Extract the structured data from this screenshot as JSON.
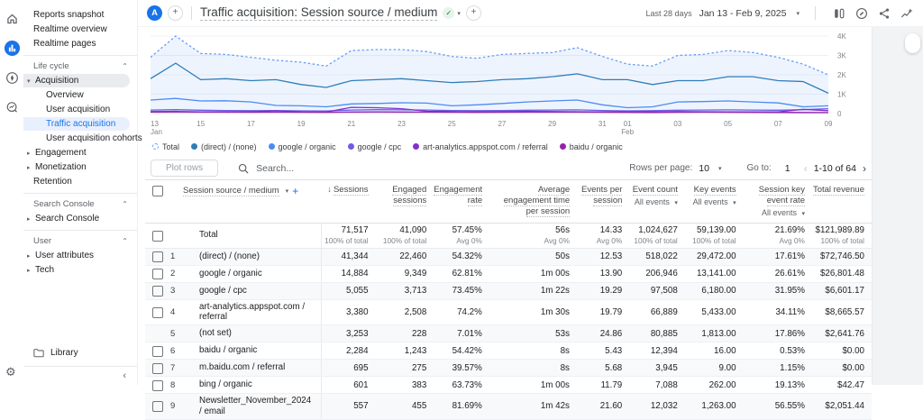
{
  "icons": {
    "plus": "+",
    "caret_down": "▾",
    "check": "✓",
    "collapse": "⌃",
    "chevron_left": "‹",
    "chevron_right": "›",
    "sort_desc": "↓",
    "gear": "⚙",
    "arrow_right": "▸",
    "arrow_down": "▾",
    "nav_collapse": "‹"
  },
  "header": {
    "avatar": "A",
    "title": "Traffic acquisition: Session source / medium",
    "date_label": "Last 28 days",
    "date_range": "Jan 13 - Feb 9, 2025",
    "icons": [
      "comparisons",
      "customize-report",
      "share",
      "insights"
    ]
  },
  "sidebar": {
    "top_items": [
      "Reports snapshot",
      "Realtime overview",
      "Realtime pages"
    ],
    "sections": [
      {
        "label": "Life cycle",
        "items": [
          {
            "label": "Acquisition",
            "arrow": "down",
            "expanded": true
          },
          {
            "label": "Overview",
            "sub": true
          },
          {
            "label": "User acquisition",
            "sub": true
          },
          {
            "label": "Traffic acquisition",
            "sub": true,
            "selected": true
          },
          {
            "label": "User acquisition cohorts",
            "sub": true
          },
          {
            "label": "Engagement",
            "arrow": "right"
          },
          {
            "label": "Monetization",
            "arrow": "right"
          },
          {
            "label": "Retention"
          }
        ]
      },
      {
        "label": "Search Console",
        "items": [
          {
            "label": "Search Console",
            "arrow": "right"
          }
        ]
      },
      {
        "label": "User",
        "items": [
          {
            "label": "User attributes",
            "arrow": "right"
          },
          {
            "label": "Tech",
            "arrow": "right"
          }
        ]
      }
    ],
    "library": "Library"
  },
  "chart_data": {
    "type": "line",
    "title": "Sessions by session source / medium over time",
    "ylim": [
      0,
      4000
    ],
    "y_ticks": [
      {
        "v": 0,
        "label": "0"
      },
      {
        "v": 1000,
        "label": "1K"
      },
      {
        "v": 2000,
        "label": "2K"
      },
      {
        "v": 3000,
        "label": "3K"
      },
      {
        "v": 4000,
        "label": "4K"
      }
    ],
    "x": [
      "13",
      "14",
      "15",
      "16",
      "17",
      "18",
      "19",
      "20",
      "21",
      "22",
      "23",
      "24",
      "25",
      "26",
      "27",
      "28",
      "29",
      "30",
      "31",
      "01",
      "02",
      "03",
      "04",
      "05",
      "06",
      "07",
      "08",
      "09"
    ],
    "x_ticks": [
      {
        "i": 0,
        "label": "13",
        "sub": "Jan"
      },
      {
        "i": 2,
        "label": "15"
      },
      {
        "i": 4,
        "label": "17"
      },
      {
        "i": 6,
        "label": "19"
      },
      {
        "i": 8,
        "label": "21"
      },
      {
        "i": 10,
        "label": "23"
      },
      {
        "i": 12,
        "label": "25"
      },
      {
        "i": 14,
        "label": "27"
      },
      {
        "i": 16,
        "label": "29"
      },
      {
        "i": 18,
        "label": "31"
      },
      {
        "i": 19,
        "label": "01",
        "sub": "Feb"
      },
      {
        "i": 21,
        "label": "03"
      },
      {
        "i": 23,
        "label": "05"
      },
      {
        "i": 25,
        "label": "07"
      },
      {
        "i": 27,
        "label": "09"
      }
    ],
    "series": [
      {
        "name": "Total",
        "color": "#669df6",
        "dash": true,
        "area": true,
        "values": [
          2900,
          4000,
          3100,
          3050,
          2900,
          2750,
          2650,
          2450,
          3250,
          3300,
          3300,
          3200,
          2950,
          2850,
          3050,
          3100,
          3150,
          3400,
          2950,
          2550,
          2450,
          3000,
          3050,
          3250,
          3150,
          2900,
          2550,
          2000
        ]
      },
      {
        "name": "(direct) / (none)",
        "color": "#2f7db8",
        "values": [
          1800,
          2600,
          1750,
          1800,
          1700,
          1750,
          1500,
          1350,
          1700,
          1750,
          1800,
          1700,
          1600,
          1650,
          1750,
          1800,
          1900,
          2050,
          1750,
          1750,
          1500,
          1700,
          1700,
          1900,
          1900,
          1700,
          1650,
          1050
        ]
      },
      {
        "name": "google / organic",
        "color": "#4c8bf5",
        "values": [
          700,
          780,
          650,
          660,
          600,
          420,
          400,
          350,
          500,
          520,
          560,
          540,
          400,
          450,
          520,
          600,
          650,
          700,
          450,
          300,
          350,
          600,
          620,
          650,
          600,
          550,
          350,
          400
        ]
      },
      {
        "name": "google / cpc",
        "color": "#6c5ce7",
        "values": [
          180,
          200,
          170,
          160,
          150,
          160,
          140,
          130,
          180,
          200,
          190,
          180,
          160,
          150,
          160,
          170,
          180,
          190,
          160,
          140,
          150,
          170,
          180,
          190,
          180,
          170,
          200,
          250
        ]
      },
      {
        "name": "art-analytics.appspot.com / referral",
        "color": "#8430ce",
        "values": [
          100,
          110,
          90,
          95,
          90,
          140,
          90,
          80,
          320,
          300,
          250,
          120,
          100,
          90,
          100,
          110,
          100,
          95,
          90,
          85,
          90,
          100,
          95,
          90,
          85,
          90,
          220,
          150
        ]
      },
      {
        "name": "baidu / organic",
        "color": "#9125a9",
        "values": [
          80,
          85,
          80,
          75,
          70,
          75,
          70,
          65,
          80,
          85,
          80,
          75,
          70,
          65,
          70,
          75,
          80,
          75,
          70,
          65,
          60,
          70,
          75,
          70,
          65,
          60,
          55,
          50
        ]
      }
    ]
  },
  "toolbar": {
    "plot_rows": "Plot rows",
    "search_placeholder": "Search...",
    "rows_per_page_label": "Rows per page:",
    "rows_per_page_value": "10",
    "goto_label": "Go to:",
    "goto_value": "1",
    "pagination": "1-10 of 64"
  },
  "table": {
    "dimension_header": "Session source / medium",
    "columns": [
      {
        "label": "Sessions",
        "sort": true
      },
      {
        "label": "Engaged sessions"
      },
      {
        "label": "Engagement rate"
      },
      {
        "label": "Average engagement time per session"
      },
      {
        "label": "Events per session"
      },
      {
        "label": "Event count",
        "filter": "All events"
      },
      {
        "label": "Key events",
        "filter": "All events"
      },
      {
        "label": "Session key event rate",
        "filter": "All events"
      },
      {
        "label": "Total revenue"
      }
    ],
    "totals": {
      "label": "Total",
      "values": [
        {
          "v": "71,517",
          "c": "100% of total"
        },
        {
          "v": "41,090",
          "c": "100% of total"
        },
        {
          "v": "57.45%",
          "c": "Avg 0%"
        },
        {
          "v": "56s",
          "c": "Avg 0%"
        },
        {
          "v": "14.33",
          "c": "Avg 0%"
        },
        {
          "v": "1,024,627",
          "c": "100% of total"
        },
        {
          "v": "59,139.00",
          "c": "100% of total"
        },
        {
          "v": "21.69%",
          "c": "Avg 0%"
        },
        {
          "v": "$121,989.89",
          "c": "100% of total"
        }
      ]
    },
    "rows": [
      {
        "n": "1",
        "source": "(direct) / (none)",
        "checkbox": true,
        "cells": [
          "41,344",
          "22,460",
          "54.32%",
          "50s",
          "12.53",
          "518,022",
          "29,472.00",
          "17.61%",
          "$72,746.50"
        ]
      },
      {
        "n": "2",
        "source": "google / organic",
        "checkbox": true,
        "cells": [
          "14,884",
          "9,349",
          "62.81%",
          "1m 00s",
          "13.90",
          "206,946",
          "13,141.00",
          "26.61%",
          "$26,801.48"
        ]
      },
      {
        "n": "3",
        "source": "google / cpc",
        "checkbox": true,
        "cells": [
          "5,055",
          "3,713",
          "73.45%",
          "1m 22s",
          "19.29",
          "97,508",
          "6,180.00",
          "31.95%",
          "$6,601.17"
        ]
      },
      {
        "n": "4",
        "source": "art-analytics.appspot.com / referral",
        "checkbox": true,
        "cells": [
          "3,380",
          "2,508",
          "74.2%",
          "1m 30s",
          "19.79",
          "66,889",
          "5,433.00",
          "34.11%",
          "$8,665.57"
        ]
      },
      {
        "n": "5",
        "source": "(not set)",
        "checkbox": false,
        "cells": [
          "3,253",
          "228",
          "7.01%",
          "53s",
          "24.86",
          "80,885",
          "1,813.00",
          "17.86%",
          "$2,641.76"
        ]
      },
      {
        "n": "6",
        "source": "baidu / organic",
        "checkbox": true,
        "cells": [
          "2,284",
          "1,243",
          "54.42%",
          "8s",
          "5.43",
          "12,394",
          "16.00",
          "0.53%",
          "$0.00"
        ]
      },
      {
        "n": "7",
        "source": "m.baidu.com / referral",
        "checkbox": true,
        "cells": [
          "695",
          "275",
          "39.57%",
          "8s",
          "5.68",
          "3,945",
          "9.00",
          "1.15%",
          "$0.00"
        ]
      },
      {
        "n": "8",
        "source": "bing / organic",
        "checkbox": true,
        "cells": [
          "601",
          "383",
          "63.73%",
          "1m 00s",
          "11.79",
          "7,088",
          "262.00",
          "19.13%",
          "$42.47"
        ]
      },
      {
        "n": "9",
        "source": "Newsletter_November_2024 / email",
        "checkbox": true,
        "cells": [
          "557",
          "455",
          "81.69%",
          "1m 42s",
          "21.60",
          "12,032",
          "1,263.00",
          "56.55%",
          "$2,051.44"
        ]
      }
    ]
  }
}
